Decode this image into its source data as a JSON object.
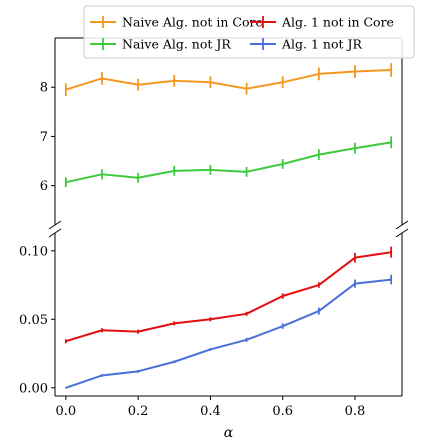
{
  "chart_data": {
    "type": "line",
    "title": "",
    "xlabel": "α",
    "ylabel": "",
    "broken_y_axis": true,
    "x": [
      0.0,
      0.1,
      0.2,
      0.3,
      0.4,
      0.5,
      0.6,
      0.7,
      0.8,
      0.9
    ],
    "x_ticks": [
      "0.0",
      "0.2",
      "0.4",
      "0.6",
      "0.8"
    ],
    "x_tick_values": [
      0.0,
      0.2,
      0.4,
      0.6,
      0.8
    ],
    "xlim": [
      -0.03,
      0.93
    ],
    "panels": [
      {
        "name": "upper",
        "ylim": [
          5.2,
          9.0
        ],
        "y_ticks": [
          "6",
          "7",
          "8"
        ],
        "y_tick_values": [
          6,
          7,
          8
        ],
        "series": [
          {
            "name": "Naive Alg. not in Core",
            "color": "#f5961e",
            "values": [
              7.95,
              8.18,
              8.05,
              8.13,
              8.1,
              7.97,
              8.1,
              8.27,
              8.32,
              8.35
            ],
            "errors": [
              0.13,
              0.13,
              0.12,
              0.12,
              0.12,
              0.12,
              0.12,
              0.13,
              0.13,
              0.14
            ]
          },
          {
            "name": "Naive Alg. not JR",
            "color": "#3ec93e",
            "values": [
              6.07,
              6.23,
              6.16,
              6.3,
              6.32,
              6.28,
              6.44,
              6.63,
              6.76,
              6.88
            ],
            "errors": [
              0.1,
              0.1,
              0.1,
              0.1,
              0.1,
              0.1,
              0.1,
              0.11,
              0.11,
              0.12
            ]
          }
        ]
      },
      {
        "name": "lower",
        "ylim": [
          -0.006,
          0.113
        ],
        "y_ticks": [
          "0.00",
          "0.05",
          "0.10"
        ],
        "y_tick_values": [
          0.0,
          0.05,
          0.1
        ],
        "series": [
          {
            "name": "Alg. 1 not in Core",
            "color": "#e01010",
            "values": [
              0.034,
              0.042,
              0.041,
              0.047,
              0.05,
              0.054,
              0.067,
              0.075,
              0.095,
              0.099
            ],
            "errors": [
              0.0015,
              0.0015,
              0.0015,
              0.0015,
              0.0015,
              0.0015,
              0.002,
              0.002,
              0.0035,
              0.004
            ]
          },
          {
            "name": "Alg. 1 not JR",
            "color": "#4a6fd8",
            "values": [
              0.0,
              0.009,
              0.012,
              0.019,
              0.028,
              0.035,
              0.045,
              0.056,
              0.076,
              0.079
            ],
            "errors": [
              0.0004,
              0.001,
              0.001,
              0.001,
              0.001,
              0.0015,
              0.002,
              0.0025,
              0.003,
              0.0035
            ]
          }
        ]
      }
    ],
    "legend": {
      "placement": "top",
      "columns": 2,
      "entries": [
        "Naive Alg. not in Core",
        "Alg. 1 not in Core",
        "Naive Alg. not JR",
        "Alg. 1 not JR"
      ]
    },
    "grid": false
  }
}
